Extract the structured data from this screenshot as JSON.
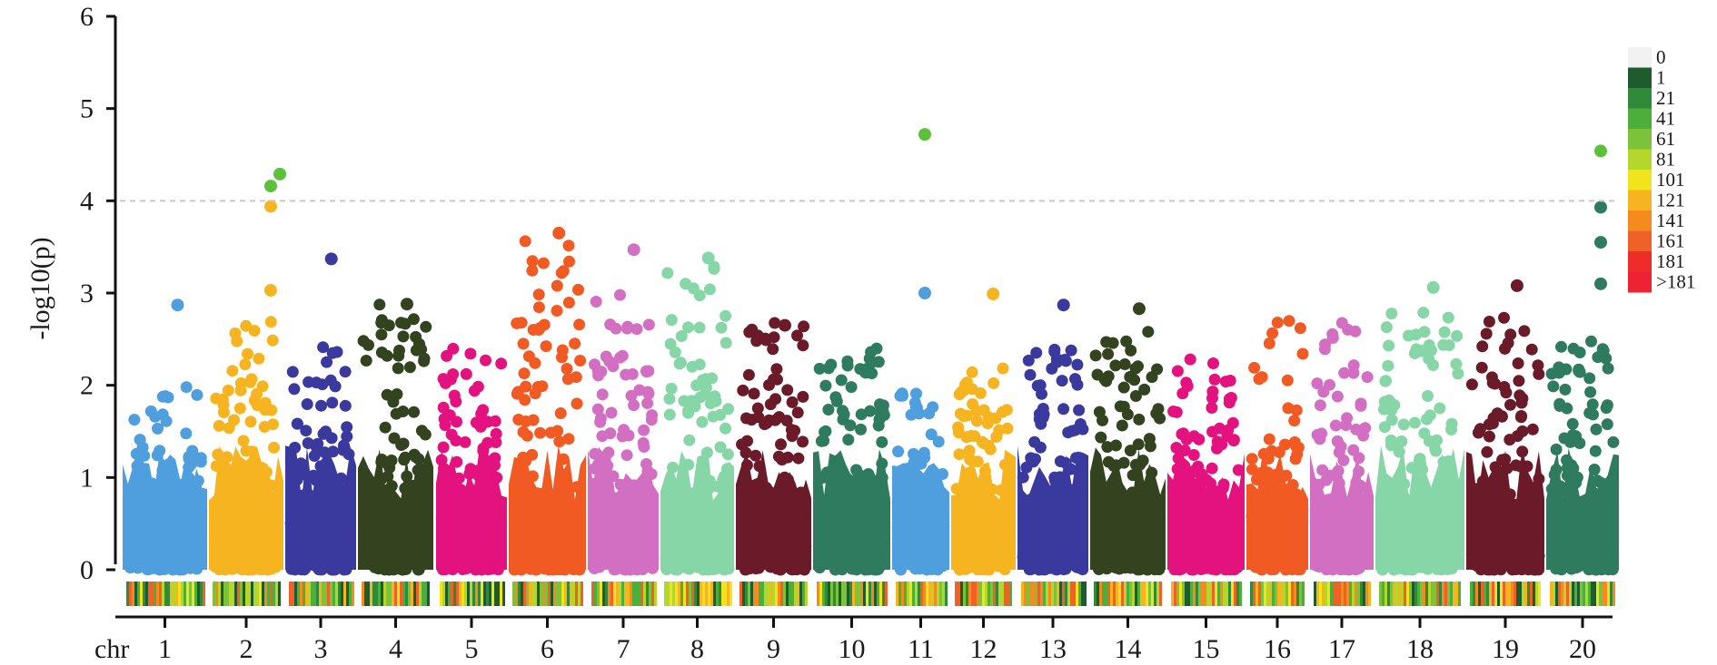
{
  "chart_data": {
    "type": "scatter",
    "title": "",
    "xlabel": "chr",
    "ylabel": "-log10(p)",
    "ylim": [
      0,
      6
    ],
    "yticks": [
      "0",
      "1",
      "2",
      "3",
      "4",
      "5",
      "6"
    ],
    "threshold": 4,
    "chromosomes": [
      "1",
      "2",
      "3",
      "4",
      "5",
      "6",
      "7",
      "8",
      "9",
      "10",
      "11",
      "12",
      "13",
      "14",
      "15",
      "16",
      "17",
      "18",
      "19",
      "20"
    ],
    "chromosome_colors": [
      "#4f9fde",
      "#f7b421",
      "#3a3a9e",
      "#34431f",
      "#e3127f",
      "#f15a22",
      "#d36fc2",
      "#86d6a7",
      "#6b1a2a",
      "#2e7b5f",
      "#4f9fde",
      "#f7b421",
      "#3a3a9e",
      "#34431f",
      "#e3127f",
      "#f15a22",
      "#d36fc2",
      "#86d6a7",
      "#6b1a2a",
      "#2e7b5f"
    ],
    "chromosome_baseline_max": [
      2.0,
      2.7,
      2.6,
      2.9,
      2.4,
      3.6,
      3.0,
      3.4,
      2.7,
      2.4,
      2.0,
      2.2,
      2.4,
      2.6,
      2.3,
      2.7,
      2.8,
      2.8,
      2.8,
      2.5
    ],
    "top_hits": [
      {
        "chr": "1",
        "y": 2.87
      },
      {
        "chr": "2",
        "y": 4.29
      },
      {
        "chr": "2",
        "y": 4.16
      },
      {
        "chr": "2",
        "y": 3.94
      },
      {
        "chr": "2",
        "y": 3.03
      },
      {
        "chr": "3",
        "y": 3.37
      },
      {
        "chr": "4",
        "y": 2.88
      },
      {
        "chr": "6",
        "y": 3.65
      },
      {
        "chr": "7",
        "y": 3.47
      },
      {
        "chr": "8",
        "y": 3.38
      },
      {
        "chr": "9",
        "y": 2.65
      },
      {
        "chr": "11",
        "y": 4.72
      },
      {
        "chr": "11",
        "y": 3.0
      },
      {
        "chr": "12",
        "y": 2.99
      },
      {
        "chr": "13",
        "y": 2.87
      },
      {
        "chr": "14",
        "y": 2.83
      },
      {
        "chr": "18",
        "y": 3.06
      },
      {
        "chr": "19",
        "y": 3.08
      },
      {
        "chr": "20",
        "y": 4.54
      },
      {
        "chr": "20",
        "y": 3.93
      },
      {
        "chr": "20",
        "y": 3.55
      },
      {
        "chr": "20",
        "y": 3.1
      }
    ],
    "density_legend": {
      "labels": [
        "0",
        "1",
        "21",
        "41",
        "61",
        "81",
        "101",
        "121",
        "141",
        "161",
        "181",
        ">181"
      ],
      "colors": [
        "#f2f2f2",
        "#1e5c2e",
        "#2f8a3a",
        "#4caf3a",
        "#7cc23a",
        "#b5d62b",
        "#f2e41c",
        "#f7b421",
        "#f58a1f",
        "#f0612a",
        "#ee2d2a",
        "#ee2233"
      ]
    },
    "grid": false,
    "legend_position": "right"
  }
}
